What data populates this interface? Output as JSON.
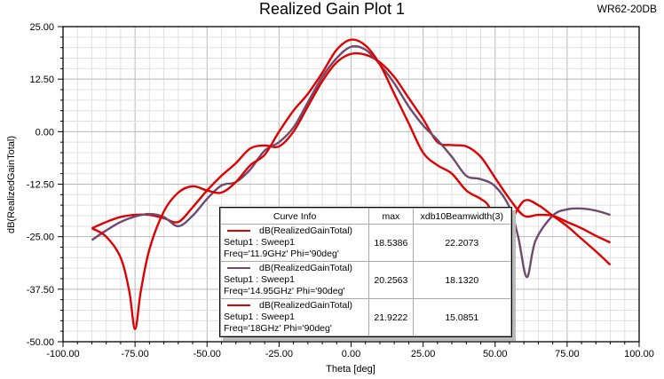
{
  "title": "Realized Gain Plot 1",
  "project": "WR62-20DB",
  "chart_data": {
    "type": "line",
    "title": "Realized Gain Plot 1",
    "xlabel": "Theta [deg]",
    "ylabel": "dB(RealizedGainTotal)",
    "xlim": [
      -100,
      100
    ],
    "ylim": [
      -50,
      25
    ],
    "xticks": [
      "-100.00",
      "-75.00",
      "-50.00",
      "-25.00",
      "0.00",
      "25.00",
      "50.00",
      "75.00",
      "100.00"
    ],
    "yticks": [
      "25.00",
      "12.50",
      "0.00",
      "-12.50",
      "-25.00",
      "-37.50",
      "-50.00"
    ],
    "xtick_values": [
      -100,
      -75,
      -50,
      -25,
      0,
      25,
      50,
      75,
      100
    ],
    "ytick_values": [
      25,
      12.5,
      0,
      -12.5,
      -25,
      -37.5,
      -50
    ],
    "grid": true,
    "legend_position": "bottom-center",
    "legend_headers": [
      "Curve Info",
      "max",
      "xdb10Beamwidth(3)"
    ],
    "series": [
      {
        "name": "dB(RealizedGainTotal)",
        "setup": "Setup1 : Sweep1",
        "params": "Freq='11.9GHz' Phi='90deg'",
        "max": "18.5386",
        "beamwidth": "22.2073",
        "color": "#e00000",
        "x": [
          -90,
          -85,
          -80,
          -75,
          -70,
          -65,
          -60,
          -55,
          -50,
          -45,
          -40,
          -35,
          -30,
          -25,
          -20,
          -15,
          -10,
          -5,
          0,
          5,
          10,
          15,
          20,
          25,
          30,
          35,
          40,
          45,
          50,
          55,
          60,
          65,
          70,
          75,
          80,
          85,
          90
        ],
        "y": [
          -23,
          -21.5,
          -20.3,
          -19.8,
          -19.8,
          -20.6,
          -21.5,
          -18,
          -14,
          -10.5,
          -7.5,
          -4,
          -3.3,
          -3.5,
          0,
          6,
          12,
          16.5,
          18.5,
          18.3,
          16.5,
          13,
          8,
          3,
          -2.5,
          -3.2,
          -3.5,
          -6,
          -11,
          -16,
          -20,
          -19.8,
          -20,
          -21.5,
          -23,
          -24.8,
          -26.4
        ]
      },
      {
        "name": "dB(RealizedGainTotal)",
        "setup": "Setup1 : Sweep1",
        "params": "Freq='14.95GHz' Phi='90deg'",
        "max": "20.2563",
        "beamwidth": "18.1320",
        "color": "#6e4a6e",
        "x": [
          -90,
          -85,
          -80,
          -75,
          -70,
          -65,
          -60,
          -55,
          -50,
          -45,
          -40,
          -35,
          -30,
          -25,
          -20,
          -15,
          -10,
          -5,
          0,
          5,
          10,
          15,
          20,
          25,
          30,
          35,
          40,
          45,
          50,
          55,
          58,
          61,
          64,
          70,
          75,
          80,
          85,
          90
        ],
        "y": [
          -25.8,
          -23.5,
          -21.5,
          -20.2,
          -19.6,
          -20.3,
          -22.5,
          -20,
          -16,
          -12.8,
          -12,
          -9,
          -4.5,
          -2.5,
          1,
          7,
          13,
          17.5,
          20.2,
          19.5,
          16,
          11.5,
          6,
          1.5,
          -2,
          -6,
          -10.5,
          -11.3,
          -13,
          -18,
          -25,
          -34.6,
          -26,
          -20,
          -18.5,
          -18.3,
          -18.8,
          -19.8
        ]
      },
      {
        "name": "dB(RealizedGainTotal)",
        "setup": "Setup1 : Sweep1",
        "params": "Freq='18GHz' Phi='90deg'",
        "max": "21.9222",
        "beamwidth": "15.0851",
        "color": "#e00000",
        "x": [
          -90,
          -85,
          -80,
          -77,
          -75,
          -73,
          -70,
          -65,
          -60,
          -55,
          -50,
          -45,
          -40,
          -35,
          -30,
          -25,
          -20,
          -15,
          -10,
          -5,
          0,
          5,
          10,
          15,
          20,
          25,
          30,
          35,
          40,
          45,
          48,
          52,
          55,
          60,
          65,
          70,
          75,
          80,
          85,
          90
        ],
        "y": [
          -23,
          -25,
          -30,
          -38,
          -47,
          -38,
          -28,
          -19,
          -14.5,
          -13,
          -14,
          -14.5,
          -12,
          -8,
          -5.5,
          0,
          5,
          9,
          14,
          19.5,
          21.9,
          20.5,
          16,
          9,
          2,
          -5,
          -8,
          -10,
          -14,
          -16,
          -18,
          -25,
          -22,
          -16.5,
          -17.5,
          -20,
          -22.5,
          -25.5,
          -28.5,
          -31.7
        ]
      }
    ]
  }
}
